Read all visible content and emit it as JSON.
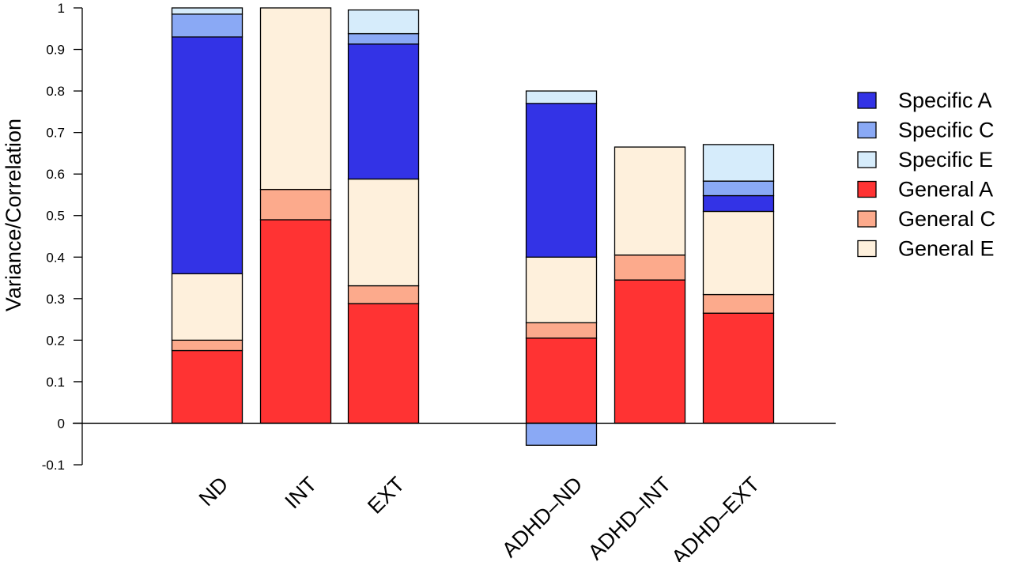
{
  "chart_data": {
    "type": "bar",
    "stacked": true,
    "ylabel": "Variance/Correlation",
    "xlabel": "",
    "ylim": [
      -0.1,
      1
    ],
    "yticks": [
      "-0.1",
      "0",
      "0.1",
      "0.2",
      "0.3",
      "0.4",
      "0.5",
      "0.6",
      "0.7",
      "0.8",
      "0.9",
      "1"
    ],
    "categories": [
      "ND",
      "INT",
      "EXT",
      "ADHD–ND",
      "ADHD–INT",
      "ADHD–EXT"
    ],
    "legend_position": "right",
    "series": [
      {
        "name": "Specific A",
        "color": "#3333e6",
        "values": [
          0.57,
          0,
          0.325,
          0.37,
          0,
          0.038
        ]
      },
      {
        "name": "Specific C",
        "color": "#8aa9f5",
        "values": [
          0.055,
          0,
          0.025,
          -0.053,
          0,
          0.035
        ]
      },
      {
        "name": "Specific E",
        "color": "#d6ecfb",
        "values": [
          0.015,
          0,
          0.057,
          0.03,
          0,
          0.088
        ]
      },
      {
        "name": "General A",
        "color": "#ff3333",
        "values": [
          0.175,
          0.49,
          0.288,
          0.205,
          0.345,
          0.265
        ]
      },
      {
        "name": "General C",
        "color": "#fcaa8c",
        "values": [
          0.025,
          0.073,
          0.043,
          0.037,
          0.06,
          0.045
        ]
      },
      {
        "name": "General E",
        "color": "#fef0dc",
        "values": [
          0.16,
          0.437,
          0.257,
          0.158,
          0.26,
          0.2
        ]
      }
    ],
    "stack_order": [
      "General A",
      "General C",
      "General E",
      "Specific A",
      "Specific C",
      "Specific E"
    ]
  }
}
